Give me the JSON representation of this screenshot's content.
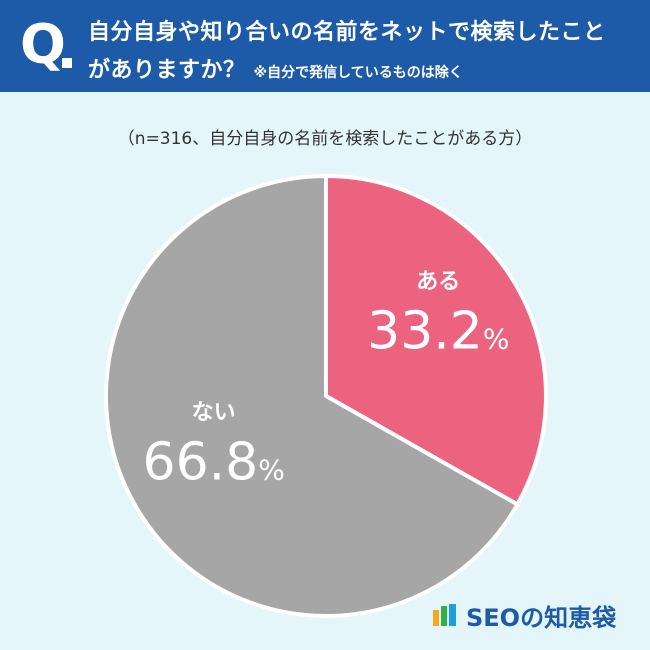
{
  "header": {
    "q_mark": "Q",
    "question_line1": "自分自身や知り合いの名前をネットで検索したこと",
    "question_line2": "がありますか？",
    "note": "※自分で発信しているものは除く"
  },
  "sample_note": "（n=316、自分自身の名前を検索したことがある方）",
  "chart_data": {
    "type": "pie",
    "start": "12 o'clock, clockwise",
    "slices": [
      {
        "label": "ある",
        "value": 33.2,
        "value_text": "33.2",
        "unit": "%",
        "color": "#ec6380"
      },
      {
        "label": "ない",
        "value": 66.8,
        "value_text": "66.8",
        "unit": "%",
        "color": "#a6a6a6"
      }
    ]
  },
  "brand": {
    "name": "SEOの知恵袋",
    "logo_icon": "stacked-books-icon",
    "logo_colors": [
      "#f5a623",
      "#2db34a",
      "#1d9fd8"
    ]
  },
  "colors": {
    "header_bg": "#1d5aa8",
    "background": "#e4f6fa",
    "label_text": "#ffffff"
  }
}
